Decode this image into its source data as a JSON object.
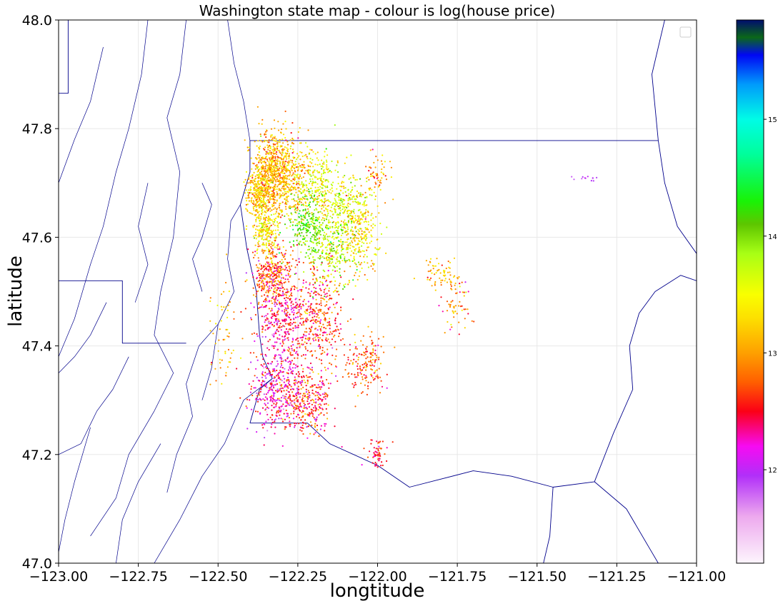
{
  "chart_data": {
    "type": "scatter",
    "title": "Washington state map - colour is log(house price)",
    "xlabel": "longtitude",
    "ylabel": "latitude",
    "xlim": [
      -123.0,
      -121.0
    ],
    "ylim": [
      47.0,
      48.0
    ],
    "xticks": [
      -123.0,
      -122.75,
      -122.5,
      -122.25,
      -122.0,
      -121.75,
      -121.5,
      -121.25,
      -121.0
    ],
    "xtick_labels": [
      "−123.00",
      "−122.75",
      "−122.50",
      "−122.25",
      "−122.00",
      "−121.75",
      "−121.50",
      "−121.25",
      "−121.00"
    ],
    "yticks": [
      47.0,
      47.2,
      47.4,
      47.6,
      47.8,
      48.0
    ],
    "ytick_labels": [
      "47.0",
      "47.2",
      "47.4",
      "47.6",
      "47.8",
      "48.0"
    ],
    "grid": true,
    "legend": "top-right (empty)",
    "colormap": "gist_ncar_r",
    "colorbar": {
      "range": [
        11.2,
        15.85
      ],
      "ticks": [
        12,
        13,
        14,
        15
      ],
      "tick_labels": [
        "12",
        "13",
        "14",
        "15"
      ],
      "stops": [
        {
          "value": 11.2,
          "color": "#fdf5fd"
        },
        {
          "value": 11.6,
          "color": "#eda9ee"
        },
        {
          "value": 11.95,
          "color": "#b12ff9"
        },
        {
          "value": 12.2,
          "color": "#f60bf2"
        },
        {
          "value": 12.5,
          "color": "#fb0016"
        },
        {
          "value": 12.75,
          "color": "#ff5f00"
        },
        {
          "value": 13.0,
          "color": "#fea000"
        },
        {
          "value": 13.3,
          "color": "#fde000"
        },
        {
          "value": 13.5,
          "color": "#f9ff00"
        },
        {
          "value": 13.85,
          "color": "#a8ff15"
        },
        {
          "value": 14.1,
          "color": "#5ec600"
        },
        {
          "value": 14.3,
          "color": "#19f306"
        },
        {
          "value": 14.7,
          "color": "#00fe9b"
        },
        {
          "value": 15.0,
          "color": "#00fce6"
        },
        {
          "value": 15.3,
          "color": "#009afc"
        },
        {
          "value": 15.55,
          "color": "#0007f4"
        },
        {
          "value": 15.7,
          "color": "#0b6818"
        },
        {
          "value": 15.85,
          "color": "#000d6e"
        }
      ]
    },
    "clusters": [
      {
        "lon": -122.33,
        "lat": 47.72,
        "sd_lon": 0.03,
        "sd_lat": 0.04,
        "value": 13.05,
        "spread": 0.25,
        "n": 650
      },
      {
        "lon": -122.37,
        "lat": 47.68,
        "sd_lon": 0.02,
        "sd_lat": 0.025,
        "value": 13.25,
        "spread": 0.25,
        "n": 300
      },
      {
        "lon": -122.27,
        "lat": 47.71,
        "sd_lon": 0.035,
        "sd_lat": 0.035,
        "value": 13.2,
        "spread": 0.3,
        "n": 350
      },
      {
        "lon": -122.18,
        "lat": 47.69,
        "sd_lon": 0.035,
        "sd_lat": 0.04,
        "value": 13.5,
        "spread": 0.3,
        "n": 250
      },
      {
        "lon": -122.1,
        "lat": 47.66,
        "sd_lon": 0.04,
        "sd_lat": 0.03,
        "value": 13.6,
        "spread": 0.25,
        "n": 200
      },
      {
        "lon": -122.22,
        "lat": 47.62,
        "sd_lon": 0.025,
        "sd_lat": 0.025,
        "value": 14.15,
        "spread": 0.2,
        "n": 180
      },
      {
        "lon": -122.15,
        "lat": 47.58,
        "sd_lon": 0.045,
        "sd_lat": 0.03,
        "value": 13.75,
        "spread": 0.3,
        "n": 320
      },
      {
        "lon": -122.05,
        "lat": 47.61,
        "sd_lon": 0.03,
        "sd_lat": 0.035,
        "value": 13.3,
        "spread": 0.3,
        "n": 250
      },
      {
        "lon": -122.35,
        "lat": 47.61,
        "sd_lon": 0.02,
        "sd_lat": 0.02,
        "value": 13.35,
        "spread": 0.25,
        "n": 200
      },
      {
        "lon": -122.33,
        "lat": 47.53,
        "sd_lon": 0.03,
        "sd_lat": 0.03,
        "value": 12.75,
        "spread": 0.3,
        "n": 350
      },
      {
        "lon": -122.3,
        "lat": 47.45,
        "sd_lon": 0.04,
        "sd_lat": 0.04,
        "value": 12.4,
        "spread": 0.3,
        "n": 350
      },
      {
        "lon": -122.19,
        "lat": 47.45,
        "sd_lon": 0.04,
        "sd_lat": 0.05,
        "value": 12.65,
        "spread": 0.3,
        "n": 400
      },
      {
        "lon": -122.32,
        "lat": 47.32,
        "sd_lon": 0.04,
        "sd_lat": 0.04,
        "value": 12.3,
        "spread": 0.3,
        "n": 380
      },
      {
        "lon": -122.22,
        "lat": 47.3,
        "sd_lon": 0.04,
        "sd_lat": 0.03,
        "value": 12.55,
        "spread": 0.3,
        "n": 300
      },
      {
        "lon": -122.04,
        "lat": 47.37,
        "sd_lon": 0.03,
        "sd_lat": 0.025,
        "value": 12.75,
        "spread": 0.25,
        "n": 170
      },
      {
        "lon": -122.0,
        "lat": 47.2,
        "sd_lon": 0.015,
        "sd_lat": 0.012,
        "value": 12.55,
        "spread": 0.2,
        "n": 60
      },
      {
        "lon": -121.8,
        "lat": 47.53,
        "sd_lon": 0.03,
        "sd_lat": 0.012,
        "value": 13.15,
        "spread": 0.3,
        "n": 70
      },
      {
        "lon": -121.75,
        "lat": 47.47,
        "sd_lon": 0.025,
        "sd_lat": 0.025,
        "value": 12.95,
        "spread": 0.3,
        "n": 60
      },
      {
        "lon": -122.48,
        "lat": 47.43,
        "sd_lon": 0.025,
        "sd_lat": 0.06,
        "value": 13.1,
        "spread": 0.3,
        "n": 60
      },
      {
        "lon": -122.0,
        "lat": 47.72,
        "sd_lon": 0.02,
        "sd_lat": 0.02,
        "value": 13.0,
        "spread": 0.3,
        "n": 60
      },
      {
        "lon": -121.35,
        "lat": 47.71,
        "sd_lon": 0.02,
        "sd_lat": 0.004,
        "value": 11.9,
        "spread": 0.1,
        "n": 12
      }
    ],
    "boundaries": {
      "kitsap_box": [
        [
          -123.0,
          47.52
        ],
        [
          -122.8,
          47.52
        ],
        [
          -122.8,
          47.405
        ],
        [
          -122.6,
          47.405
        ]
      ],
      "mason_box": [
        [
          -123.0,
          47.865
        ],
        [
          -122.97,
          47.865
        ],
        [
          -122.97,
          48.0
        ]
      ],
      "king_north": [
        [
          -122.4,
          47.778
        ],
        [
          -121.12,
          47.778
        ]
      ],
      "king_south": [
        [
          -122.4,
          47.258
        ],
        [
          -122.22,
          47.258
        ],
        [
          -122.15,
          47.22
        ],
        [
          -122.0,
          47.18
        ],
        [
          -121.9,
          47.14
        ],
        [
          -121.7,
          47.17
        ],
        [
          -121.58,
          47.16
        ],
        [
          -121.45,
          47.14
        ],
        [
          -121.32,
          47.15
        ],
        [
          -121.26,
          47.24
        ],
        [
          -121.2,
          47.32
        ],
        [
          -121.21,
          47.4
        ],
        [
          -121.18,
          47.46
        ],
        [
          -121.13,
          47.5
        ],
        [
          -121.05,
          47.53
        ],
        [
          -121.0,
          47.52
        ]
      ],
      "king_west": [
        [
          -122.4,
          47.778
        ],
        [
          -122.4,
          47.72
        ],
        [
          -122.43,
          47.66
        ],
        [
          -122.41,
          47.58
        ],
        [
          -122.38,
          47.5
        ],
        [
          -122.37,
          47.42
        ],
        [
          -122.36,
          47.38
        ],
        [
          -122.33,
          47.34
        ],
        [
          -122.37,
          47.32
        ],
        [
          -122.4,
          47.258
        ]
      ],
      "right_river": [
        [
          -121.12,
          47.778
        ],
        [
          -121.1,
          47.7
        ],
        [
          -121.06,
          47.62
        ],
        [
          -121.0,
          47.57
        ]
      ],
      "far_right": [
        [
          -121.12,
          47.778
        ],
        [
          -121.14,
          47.9
        ],
        [
          -121.1,
          48.0
        ]
      ],
      "pierce_se": [
        [
          -121.45,
          47.14
        ],
        [
          -121.46,
          47.05
        ],
        [
          -121.48,
          47.0
        ]
      ],
      "pierce_e": [
        [
          -121.32,
          47.15
        ],
        [
          -121.22,
          47.1
        ],
        [
          -121.15,
          47.03
        ],
        [
          -121.12,
          47.0
        ]
      ]
    },
    "coastlines": [
      [
        [
          -122.4,
          47.778
        ],
        [
          -122.42,
          47.85
        ],
        [
          -122.45,
          47.92
        ],
        [
          -122.47,
          48.0
        ]
      ],
      [
        [
          -122.43,
          47.66
        ],
        [
          -122.46,
          47.63
        ],
        [
          -122.47,
          47.56
        ],
        [
          -122.45,
          47.5
        ],
        [
          -122.5,
          47.44
        ],
        [
          -122.52,
          47.36
        ],
        [
          -122.55,
          47.3
        ]
      ],
      [
        [
          -122.33,
          47.34
        ],
        [
          -122.42,
          47.3
        ],
        [
          -122.45,
          47.26
        ],
        [
          -122.48,
          47.22
        ],
        [
          -122.55,
          47.16
        ],
        [
          -122.62,
          47.08
        ],
        [
          -122.7,
          47.0
        ]
      ],
      [
        [
          -122.6,
          48.0
        ],
        [
          -122.62,
          47.9
        ],
        [
          -122.66,
          47.82
        ],
        [
          -122.62,
          47.72
        ],
        [
          -122.64,
          47.6
        ],
        [
          -122.68,
          47.5
        ],
        [
          -122.7,
          47.42
        ],
        [
          -122.64,
          47.35
        ],
        [
          -122.7,
          47.28
        ],
        [
          -122.78,
          47.2
        ],
        [
          -122.82,
          47.12
        ],
        [
          -122.9,
          47.05
        ]
      ],
      [
        [
          -122.72,
          48.0
        ],
        [
          -122.74,
          47.9
        ],
        [
          -122.78,
          47.8
        ],
        [
          -122.82,
          47.72
        ],
        [
          -122.86,
          47.62
        ],
        [
          -122.9,
          47.55
        ],
        [
          -122.95,
          47.45
        ],
        [
          -123.0,
          47.38
        ]
      ],
      [
        [
          -122.86,
          47.95
        ],
        [
          -122.9,
          47.85
        ],
        [
          -122.95,
          47.78
        ],
        [
          -123.0,
          47.7
        ]
      ],
      [
        [
          -122.5,
          47.44
        ],
        [
          -122.56,
          47.4
        ],
        [
          -122.6,
          47.33
        ],
        [
          -122.58,
          47.27
        ],
        [
          -122.63,
          47.2
        ],
        [
          -122.66,
          47.13
        ]
      ],
      [
        [
          -122.55,
          47.7
        ],
        [
          -122.52,
          47.66
        ],
        [
          -122.55,
          47.6
        ],
        [
          -122.58,
          47.56
        ],
        [
          -122.55,
          47.5
        ]
      ],
      [
        [
          -122.78,
          47.38
        ],
        [
          -122.83,
          47.32
        ],
        [
          -122.88,
          47.28
        ],
        [
          -122.93,
          47.22
        ],
        [
          -123.0,
          47.2
        ]
      ],
      [
        [
          -122.85,
          47.48
        ],
        [
          -122.9,
          47.42
        ],
        [
          -122.95,
          47.38
        ],
        [
          -123.0,
          47.35
        ]
      ],
      [
        [
          -122.72,
          47.7
        ],
        [
          -122.75,
          47.62
        ],
        [
          -122.72,
          47.55
        ],
        [
          -122.76,
          47.48
        ]
      ],
      [
        [
          -122.9,
          47.25
        ],
        [
          -122.95,
          47.15
        ],
        [
          -122.98,
          47.08
        ],
        [
          -123.0,
          47.02
        ]
      ],
      [
        [
          -122.68,
          47.22
        ],
        [
          -122.75,
          47.15
        ],
        [
          -122.8,
          47.08
        ],
        [
          -122.82,
          47.0
        ]
      ]
    ]
  }
}
